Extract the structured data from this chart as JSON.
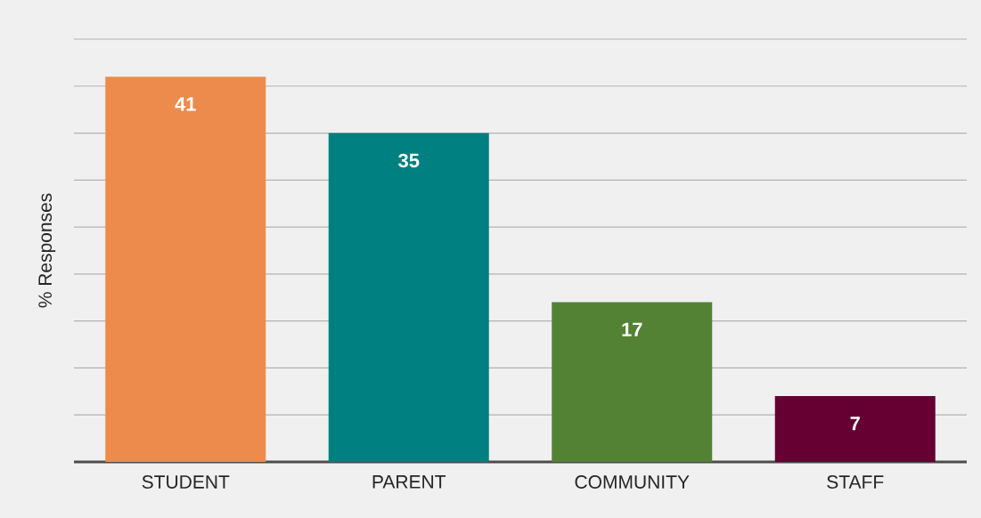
{
  "chart_data": {
    "type": "bar",
    "ylabel": "% Responses",
    "categories": [
      "STUDENT",
      "PARENT",
      "COMMUNITY",
      "STAFF"
    ],
    "values": [
      41,
      35,
      17,
      7
    ],
    "colors": [
      "#ed8b4c",
      "#008080",
      "#548235",
      "#660033"
    ],
    "ylim": [
      0,
      45
    ],
    "yticks": [
      {
        "value": 0,
        "label": null
      },
      {
        "value": 5,
        "label": null
      },
      {
        "value": 10,
        "label": null
      },
      {
        "value": 15,
        "label": null
      },
      {
        "value": 20,
        "label": null
      },
      {
        "value": 25,
        "label": null
      },
      {
        "value": 30,
        "label": null
      },
      {
        "value": 35,
        "label": null
      },
      {
        "value": 40,
        "label": null
      },
      {
        "value": 45,
        "label": null
      }
    ],
    "grid": "y",
    "data_labels": true,
    "tick_labels": "x"
  }
}
